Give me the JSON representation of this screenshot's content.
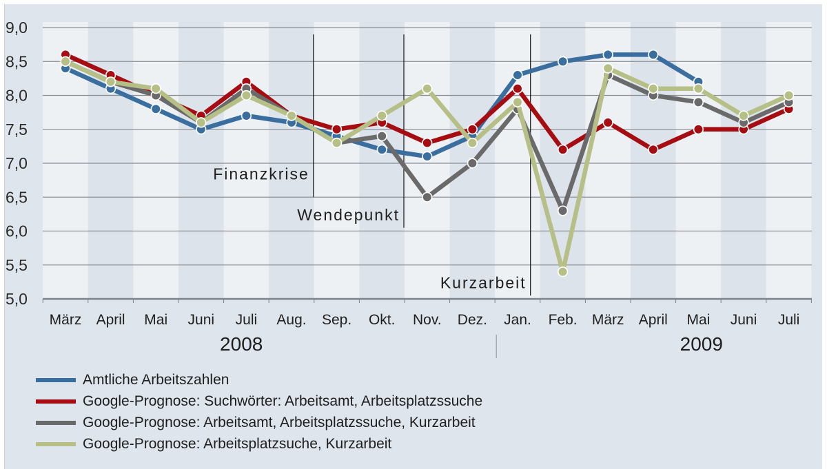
{
  "chart_data": {
    "type": "line",
    "title": "",
    "xlabel": "",
    "ylabel": "",
    "ylim": [
      5.0,
      9.0
    ],
    "yticks": [
      "5,0",
      "5,5",
      "6,0",
      "6,5",
      "7,0",
      "7,5",
      "8,0",
      "8,5",
      "9,0"
    ],
    "categories": [
      "März",
      "April",
      "Mai",
      "Juni",
      "Juli",
      "Aug.",
      "Sep.",
      "Okt.",
      "Nov.",
      "Dez.",
      "Jan.",
      "Feb.",
      "März",
      "April",
      "Mai",
      "Juni",
      "Juli"
    ],
    "year_labels": [
      {
        "label": "2008",
        "from_index": 0,
        "to_index": 9
      },
      {
        "label": "2009",
        "from_index": 10,
        "to_index": 16
      }
    ],
    "grid": true,
    "legend_position": "bottom",
    "series": [
      {
        "name": "Amtliche Arbeitszahlen",
        "color": "#3a6e9f",
        "values": [
          8.4,
          8.1,
          7.8,
          7.5,
          7.7,
          7.6,
          7.4,
          7.2,
          7.1,
          7.4,
          8.3,
          8.5,
          8.6,
          8.6,
          8.2,
          null,
          null
        ]
      },
      {
        "name": "Google-Prognose: Suchwörter: Arbeitsamt, Arbeitsplatzssuche",
        "color": "#a50d12",
        "values": [
          8.6,
          8.3,
          8.0,
          7.7,
          8.2,
          7.7,
          7.5,
          7.6,
          7.3,
          7.5,
          8.1,
          7.2,
          7.6,
          7.2,
          7.5,
          7.5,
          7.8
        ]
      },
      {
        "name": "Google-Prognose: Arbeitsamt, Arbeitsplatzssuche, Kurzarbeit",
        "color": "#6a6a6a",
        "values": [
          8.5,
          8.2,
          8.0,
          7.6,
          8.1,
          7.7,
          7.3,
          7.4,
          6.5,
          7.0,
          7.8,
          6.3,
          8.3,
          8.0,
          7.9,
          7.6,
          7.9
        ]
      },
      {
        "name": "Google-Prognose: Arbeitsplatzsuche, Kurzarbeit",
        "color": "#b5bf86",
        "values": [
          8.5,
          8.2,
          8.1,
          7.6,
          8.0,
          7.7,
          7.3,
          7.7,
          8.1,
          7.3,
          7.9,
          5.4,
          8.4,
          8.1,
          8.1,
          7.7,
          8.0
        ]
      }
    ],
    "annotations": [
      {
        "text": "Finanzkrise",
        "line_x_index": 5.5,
        "line_top": 8.9,
        "line_bottom": 6.5,
        "label_y": 6.8
      },
      {
        "text": "Wendepunkt",
        "line_x_index": 7.5,
        "line_top": 8.9,
        "line_bottom": 6.05,
        "label_y": 6.2
      },
      {
        "text": "Kurzarbeit",
        "line_x_index": 10.3,
        "line_top": 8.9,
        "line_bottom": 5.05,
        "label_y": 5.2
      }
    ]
  },
  "legend": {
    "items": [
      {
        "label": "Amtliche Arbeitszahlen",
        "color": "#3a6e9f"
      },
      {
        "label": "Google-Prognose: Suchwörter: Arbeitsamt, Arbeitsplatzssuche",
        "color": "#a50d12"
      },
      {
        "label": "Google-Prognose: Arbeitsamt, Arbeitsplatzssuche, Kurzarbeit",
        "color": "#6a6a6a"
      },
      {
        "label": "Google-Prognose: Arbeitsplatzsuche, Kurzarbeit",
        "color": "#b5bf86"
      }
    ]
  },
  "colors": {
    "background": "#dfe5ec",
    "band_light": "#eef1f4",
    "band_dark": "#dde3ea",
    "grid": "#8a8f96"
  }
}
